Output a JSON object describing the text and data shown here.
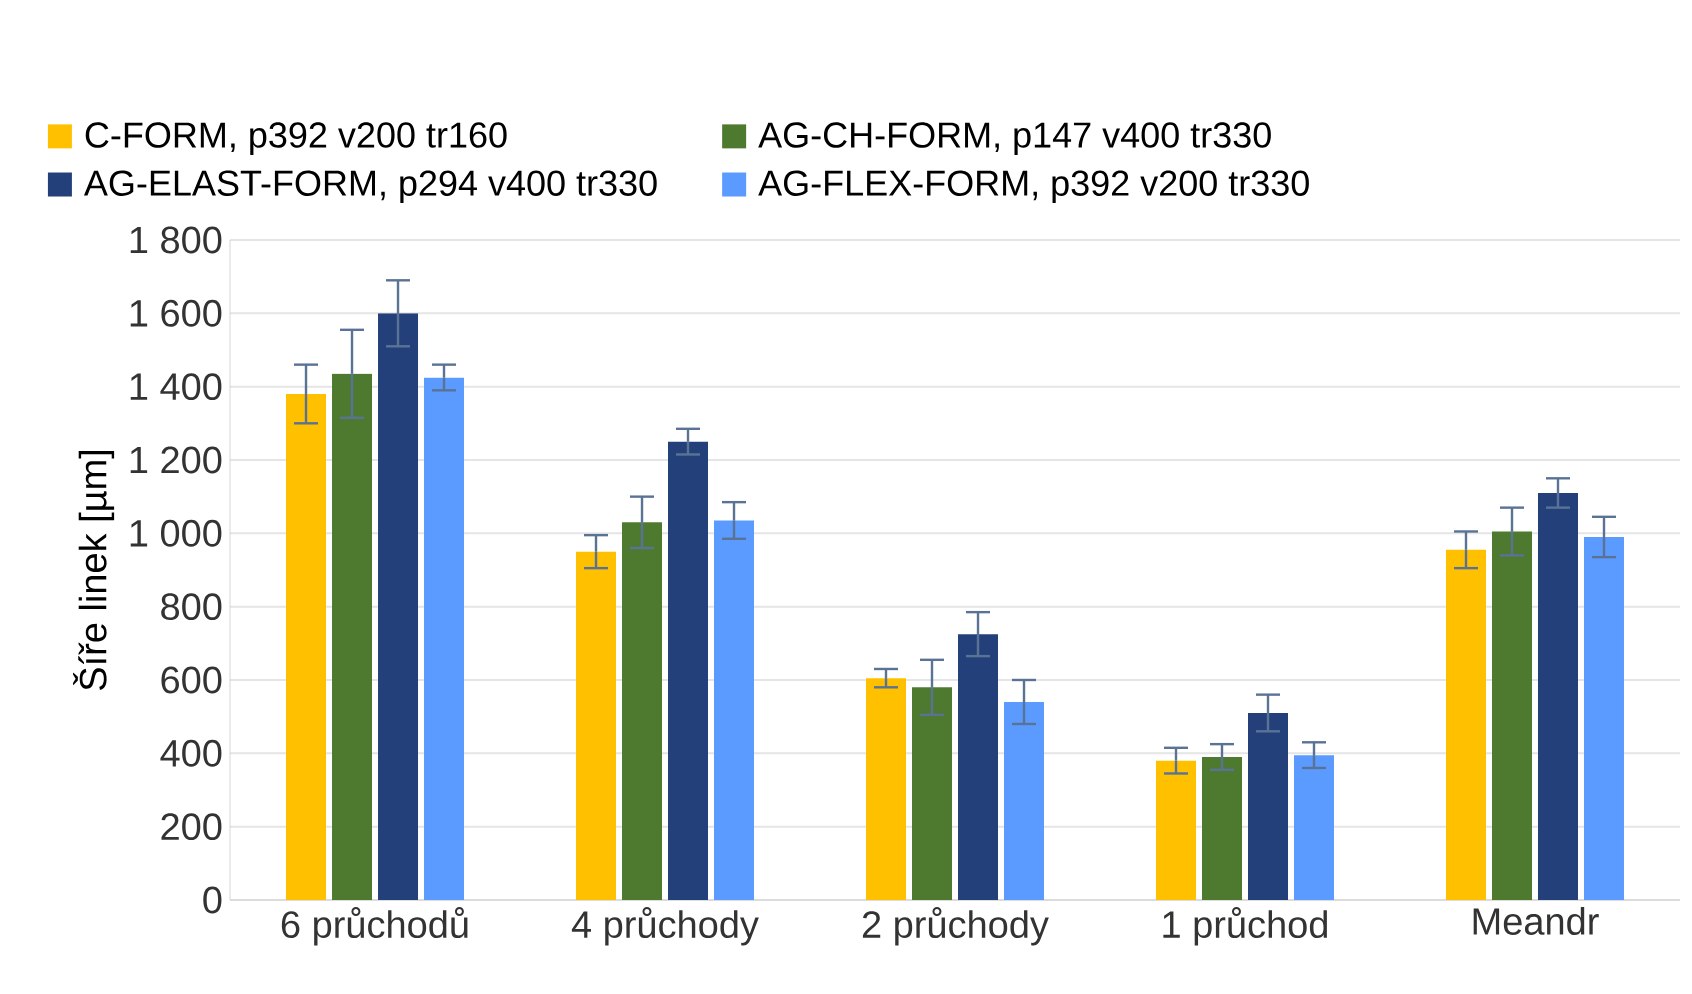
{
  "chart_data": {
    "type": "bar",
    "ylabel": "Šíře linek [µm]",
    "categories": [
      "6 průchodů",
      "4 průchody",
      "2 průchody",
      "1 průchod",
      "Meandr"
    ],
    "series": [
      {
        "name": "C-FORM, p392 v200 tr160",
        "color": "#ffc000",
        "values": [
          1380,
          950,
          605,
          380,
          955
        ],
        "errors": [
          80,
          45,
          25,
          35,
          50
        ]
      },
      {
        "name": "AG-CH-FORM, p147 v400 tr330",
        "color": "#4e7a30",
        "values": [
          1435,
          1030,
          580,
          390,
          1005
        ],
        "errors": [
          120,
          70,
          75,
          35,
          65
        ]
      },
      {
        "name": "AG-ELAST-FORM, p294 v400 tr330",
        "color": "#24407a",
        "values": [
          1600,
          1250,
          725,
          510,
          1110
        ],
        "errors": [
          90,
          35,
          60,
          50,
          40
        ]
      },
      {
        "name": "AG-FLEX-FORM, p392 v200 tr330",
        "color": "#5b9bff",
        "values": [
          1425,
          1035,
          540,
          395,
          990
        ],
        "errors": [
          35,
          50,
          60,
          35,
          55
        ]
      }
    ],
    "ylim": [
      0,
      1800
    ],
    "yticks": [
      {
        "value": 0,
        "label": "0"
      },
      {
        "value": 200,
        "label": "200"
      },
      {
        "value": 400,
        "label": "400"
      },
      {
        "value": 600,
        "label": "600"
      },
      {
        "value": 800,
        "label": "800"
      },
      {
        "value": 1000,
        "label": "1 000"
      },
      {
        "value": 1200,
        "label": "1 200"
      },
      {
        "value": 1400,
        "label": "1 400"
      },
      {
        "value": 1600,
        "label": "1 600"
      },
      {
        "value": 1800,
        "label": "1 800"
      }
    ],
    "grid": "y",
    "legend": "top"
  }
}
